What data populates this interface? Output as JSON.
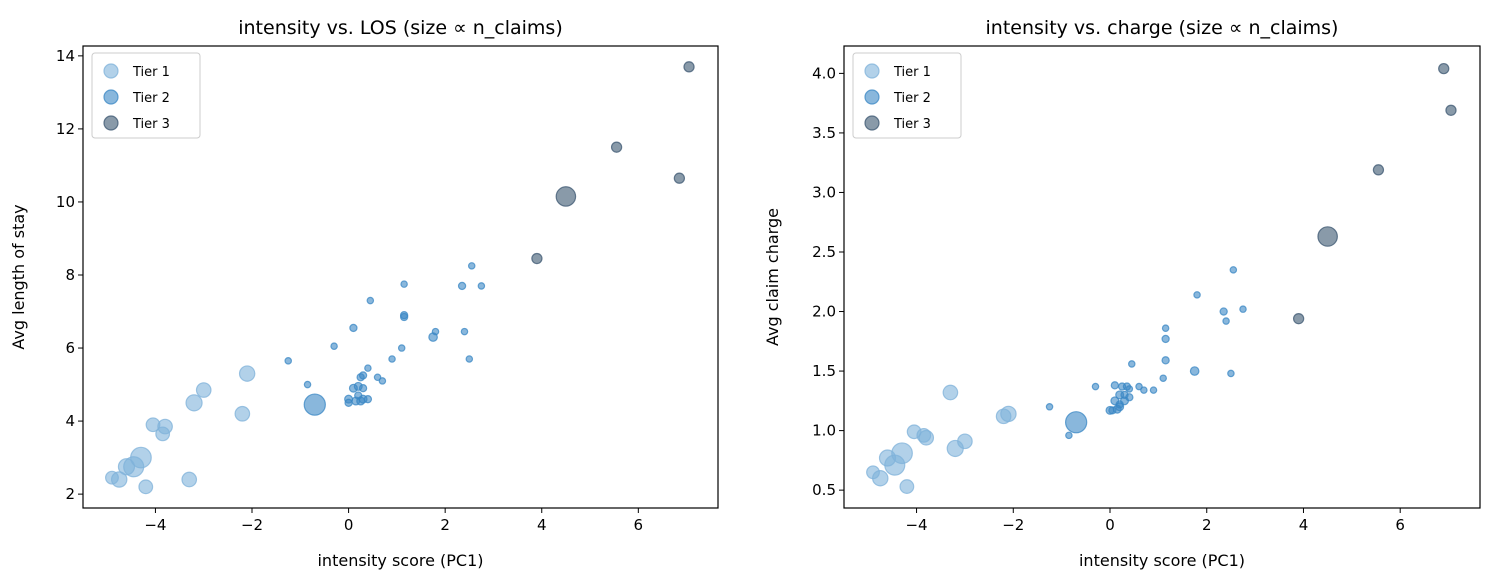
{
  "chart_data": [
    {
      "type": "scatter",
      "title": "intensity vs. LOS (size ∝ n_claims)",
      "xlabel": "intensity score (PC1)",
      "ylabel": "Avg length of stay",
      "xlim": [
        -5.5,
        7.65
      ],
      "ylim": [
        1.62,
        14.27
      ],
      "xticks": [
        -4,
        -2,
        0,
        2,
        4,
        6
      ],
      "xtick_labels": [
        "−4",
        "−2",
        "0",
        "2",
        "4",
        "6"
      ],
      "yticks": [
        2,
        4,
        6,
        8,
        10,
        12,
        14
      ],
      "ytick_labels": [
        "2",
        "4",
        "6",
        "8",
        "10",
        "12",
        "14"
      ],
      "grid": false,
      "legend": "top-left",
      "series": [
        {
          "name": "Tier 1",
          "color": "#7fb2da",
          "points": [
            [
              -4.9,
              2.45,
              30
            ],
            [
              -4.75,
              2.4,
              45
            ],
            [
              -4.6,
              2.75,
              50
            ],
            [
              -4.45,
              2.75,
              80
            ],
            [
              -4.3,
              3.0,
              85
            ],
            [
              -4.2,
              2.2,
              35
            ],
            [
              -4.05,
              3.9,
              35
            ],
            [
              -3.85,
              3.65,
              35
            ],
            [
              -3.8,
              3.85,
              40
            ],
            [
              -3.3,
              2.4,
              40
            ],
            [
              -3.2,
              4.5,
              50
            ],
            [
              -3.0,
              4.85,
              40
            ],
            [
              -2.2,
              4.2,
              40
            ],
            [
              -2.1,
              5.3,
              45
            ]
          ]
        },
        {
          "name": "Tier 2",
          "color": "#3a87c4",
          "points": [
            [
              -0.7,
              4.45,
              90
            ],
            [
              -1.25,
              5.65,
              6
            ],
            [
              -0.85,
              5.0,
              6
            ],
            [
              -0.3,
              6.05,
              6
            ],
            [
              0.1,
              6.55,
              8
            ],
            [
              0.45,
              7.3,
              6
            ],
            [
              1.15,
              7.75,
              6
            ],
            [
              1.15,
              6.9,
              8
            ],
            [
              1.15,
              6.85,
              8
            ],
            [
              1.1,
              6.0,
              6
            ],
            [
              0.9,
              5.7,
              6
            ],
            [
              0.6,
              5.2,
              6
            ],
            [
              0.7,
              5.1,
              6
            ],
            [
              1.75,
              6.3,
              12
            ],
            [
              1.8,
              6.45,
              6
            ],
            [
              2.35,
              7.7,
              8
            ],
            [
              2.75,
              7.7,
              6
            ],
            [
              2.55,
              8.25,
              6
            ],
            [
              2.4,
              6.45,
              6
            ],
            [
              2.5,
              5.7,
              6
            ],
            [
              0.0,
              4.6,
              10
            ],
            [
              0.0,
              4.5,
              8
            ],
            [
              0.15,
              4.55,
              10
            ],
            [
              0.25,
              4.55,
              10
            ],
            [
              0.3,
              4.6,
              10
            ],
            [
              0.4,
              4.6,
              8
            ],
            [
              0.1,
              4.9,
              10
            ],
            [
              0.2,
              4.95,
              10
            ],
            [
              0.3,
              4.9,
              8
            ],
            [
              0.25,
              5.2,
              8
            ],
            [
              0.3,
              5.25,
              8
            ],
            [
              0.4,
              5.45,
              6
            ],
            [
              0.2,
              4.7,
              8
            ]
          ]
        },
        {
          "name": "Tier 3",
          "color": "#3b5670",
          "points": [
            [
              7.05,
              13.7,
              18
            ],
            [
              5.55,
              11.5,
              18
            ],
            [
              6.85,
              10.65,
              18
            ],
            [
              4.5,
              10.15,
              75
            ],
            [
              3.9,
              8.45,
              18
            ]
          ]
        }
      ]
    },
    {
      "type": "scatter",
      "title": "intensity vs. charge (size ∝ n_claims)",
      "xlabel": "intensity score (PC1)",
      "ylabel": "Avg claim charge",
      "xlim": [
        -5.5,
        7.65
      ],
      "ylim": [
        0.35,
        4.23
      ],
      "xticks": [
        -4,
        -2,
        0,
        2,
        4,
        6
      ],
      "xtick_labels": [
        "−4",
        "−2",
        "0",
        "2",
        "4",
        "6"
      ],
      "yticks": [
        0.5,
        1.0,
        1.5,
        2.0,
        2.5,
        3.0,
        3.5,
        4.0
      ],
      "ytick_labels": [
        "0.5",
        "1.0",
        "1.5",
        "2.0",
        "2.5",
        "3.0",
        "3.5",
        "4.0"
      ],
      "grid": false,
      "legend": "top-left",
      "series": [
        {
          "name": "Tier 1",
          "color": "#7fb2da",
          "points": [
            [
              -4.9,
              0.65,
              30
            ],
            [
              -4.75,
              0.6,
              45
            ],
            [
              -4.6,
              0.77,
              50
            ],
            [
              -4.45,
              0.71,
              80
            ],
            [
              -4.3,
              0.81,
              85
            ],
            [
              -4.2,
              0.53,
              35
            ],
            [
              -4.05,
              0.99,
              35
            ],
            [
              -3.85,
              0.96,
              35
            ],
            [
              -3.8,
              0.94,
              40
            ],
            [
              -3.3,
              1.32,
              40
            ],
            [
              -3.2,
              0.85,
              50
            ],
            [
              -3.0,
              0.91,
              40
            ],
            [
              -2.2,
              1.12,
              40
            ],
            [
              -2.1,
              1.14,
              45
            ]
          ]
        },
        {
          "name": "Tier 2",
          "color": "#3a87c4",
          "points": [
            [
              -0.7,
              1.07,
              90
            ],
            [
              -1.25,
              1.2,
              6
            ],
            [
              -0.85,
              0.96,
              6
            ],
            [
              -0.3,
              1.37,
              6
            ],
            [
              0.1,
              1.38,
              8
            ],
            [
              0.45,
              1.56,
              6
            ],
            [
              1.15,
              1.86,
              6
            ],
            [
              1.15,
              1.77,
              8
            ],
            [
              1.15,
              1.59,
              8
            ],
            [
              1.1,
              1.44,
              6
            ],
            [
              0.9,
              1.34,
              6
            ],
            [
              0.6,
              1.37,
              6
            ],
            [
              0.7,
              1.34,
              6
            ],
            [
              1.75,
              1.5,
              12
            ],
            [
              1.8,
              2.14,
              6
            ],
            [
              2.35,
              2.0,
              8
            ],
            [
              2.75,
              2.02,
              6
            ],
            [
              2.55,
              2.35,
              6
            ],
            [
              2.4,
              1.92,
              6
            ],
            [
              2.5,
              1.48,
              6
            ],
            [
              0.0,
              1.17,
              10
            ],
            [
              0.05,
              1.17,
              8
            ],
            [
              0.15,
              1.18,
              10
            ],
            [
              0.2,
              1.2,
              10
            ],
            [
              0.3,
              1.25,
              10
            ],
            [
              0.4,
              1.28,
              8
            ],
            [
              0.1,
              1.25,
              10
            ],
            [
              0.2,
              1.3,
              10
            ],
            [
              0.3,
              1.3,
              8
            ],
            [
              0.25,
              1.37,
              8
            ],
            [
              0.35,
              1.37,
              8
            ],
            [
              0.4,
              1.35,
              6
            ],
            [
              0.2,
              1.22,
              8
            ]
          ]
        },
        {
          "name": "Tier 3",
          "color": "#3b5670",
          "points": [
            [
              7.05,
              3.69,
              18
            ],
            [
              6.9,
              4.04,
              18
            ],
            [
              5.55,
              3.19,
              18
            ],
            [
              4.5,
              2.63,
              75
            ],
            [
              3.9,
              1.94,
              18
            ]
          ]
        }
      ]
    }
  ]
}
